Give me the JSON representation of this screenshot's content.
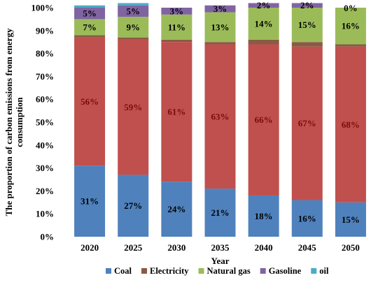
{
  "chart_data": {
    "type": "bar",
    "stacked": true,
    "percent_stacked": true,
    "title": "",
    "xlabel": "Year",
    "ylabel": "The proportion of carbon emissions from energy consumption",
    "categories": [
      "2020",
      "2025",
      "2030",
      "2035",
      "2040",
      "2045",
      "2050"
    ],
    "ylim": [
      0,
      100
    ],
    "y_ticks": [
      "0%",
      "10%",
      "20%",
      "30%",
      "40%",
      "50%",
      "60%",
      "70%",
      "80%",
      "90%",
      "100%"
    ],
    "grid": false,
    "legend_position": "bottom",
    "series": [
      {
        "name": "Coal",
        "color": "#4f81bd",
        "values": [
          31,
          27,
          24,
          21,
          18,
          16,
          15
        ],
        "labels": [
          "31%",
          "27%",
          "24%",
          "21%",
          "18%",
          "16%",
          "15%"
        ]
      },
      {
        "name": "Electricity",
        "color": "#8b5a44",
        "values": [
          1,
          1,
          1,
          1,
          2,
          2,
          1
        ],
        "labels": []
      },
      {
        "name": "Natural gas",
        "color": "#9bbb59",
        "values": [
          7,
          9,
          11,
          13,
          14,
          15,
          16
        ],
        "labels": [
          "7%",
          "9%",
          "11%",
          "13%",
          "14%",
          "15%",
          "16%"
        ]
      },
      {
        "name": "Gasoline",
        "color": "#8064a2",
        "values": [
          5,
          5,
          3,
          3,
          2,
          2,
          0
        ],
        "labels": [
          "5%",
          "5%",
          "3%",
          "3%",
          "2%",
          "2%",
          "0%"
        ]
      },
      {
        "name": "oil",
        "color": "#4bacc6",
        "values": [
          1,
          1,
          0,
          0,
          0,
          0,
          0
        ],
        "labels": []
      }
    ],
    "red_segment": {
      "color": "#c0504d",
      "values": [
        56,
        59,
        61,
        63,
        66,
        67,
        68
      ],
      "labels": [
        "56%",
        "59%",
        "61%",
        "63%",
        "66%",
        "67%",
        "68%"
      ]
    }
  }
}
